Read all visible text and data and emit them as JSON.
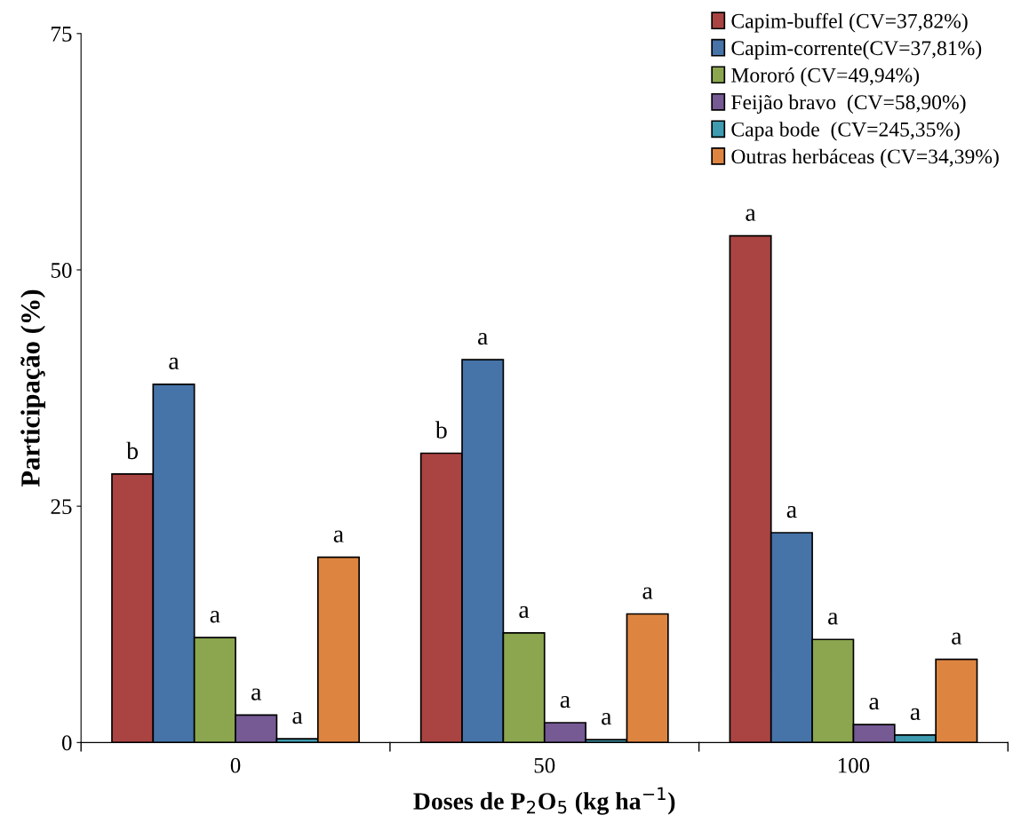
{
  "chart_data": {
    "type": "bar",
    "xlabel": "Doses de P$_{2}$O$_{5}$ (kg ha$^{−1}$)",
    "ylabel": "Participação (%)",
    "categories": [
      "0",
      "50",
      "100"
    ],
    "series": [
      {
        "name": "Capim-buffel (CV=37,82%)",
        "color": "#a94442",
        "values": [
          28.4,
          30.6,
          53.6
        ],
        "value_labels": [
          "b",
          "b",
          "a"
        ]
      },
      {
        "name": "Capim-corrente(CV=37,81%)",
        "color": "#4673a8",
        "values": [
          37.9,
          40.5,
          22.2
        ],
        "value_labels": [
          "a",
          "a",
          "a"
        ]
      },
      {
        "name": "Mororó (CV=49,94%)",
        "color": "#8ba64f",
        "values": [
          11.1,
          11.6,
          10.9
        ],
        "value_labels": [
          "a",
          "a",
          "a"
        ]
      },
      {
        "name": "Feijão bravo  (CV=58,90%)",
        "color": "#755a94",
        "values": [
          2.9,
          2.1,
          1.9
        ],
        "value_labels": [
          "a",
          "a",
          "a"
        ]
      },
      {
        "name": "Capa bode  (CV=245,35%)",
        "color": "#3e9bb0",
        "values": [
          0.4,
          0.3,
          0.8
        ],
        "value_labels": [
          "a",
          "a",
          "a"
        ]
      },
      {
        "name": "Outras herbáceas (CV=34,39%)",
        "color": "#dd8540",
        "values": [
          19.6,
          13.6,
          8.8
        ],
        "value_labels": [
          "a",
          "a",
          "a"
        ]
      }
    ],
    "ylim": [
      0,
      75
    ],
    "yticks": [
      0,
      25,
      50,
      75
    ],
    "grid": false,
    "legend": "top right"
  }
}
